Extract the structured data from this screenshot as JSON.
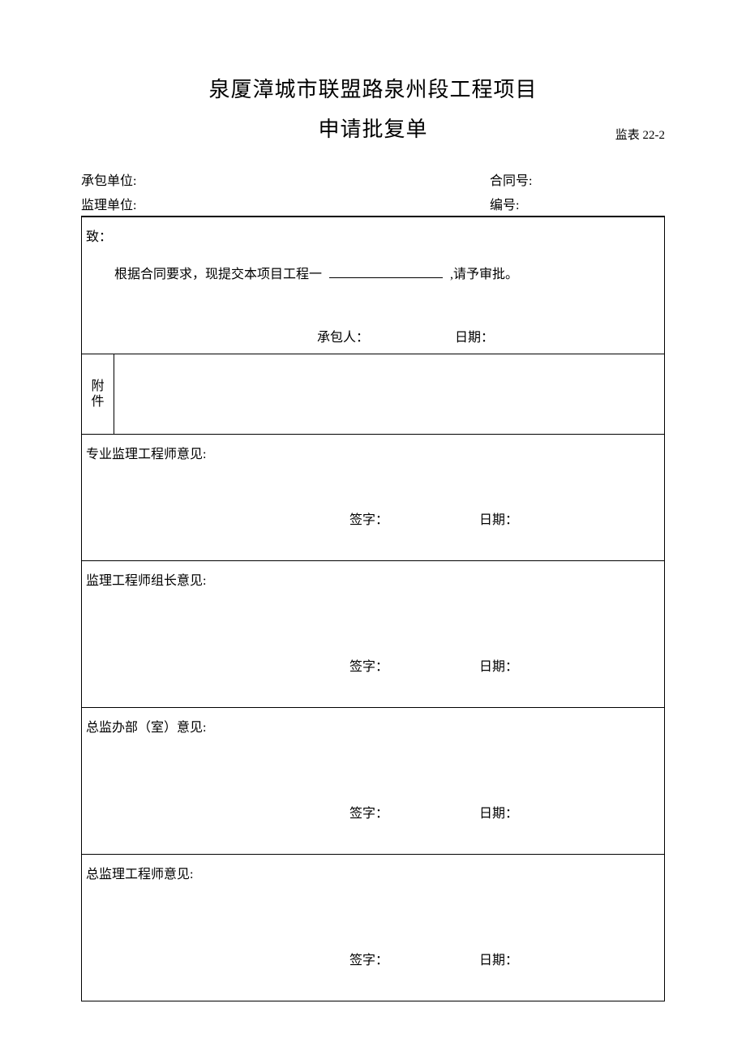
{
  "document": {
    "main_title": "泉厦漳城市联盟路泉州段工程项目",
    "sub_title": "申请批复单",
    "form_code": "监表 22-2"
  },
  "header": {
    "contractor_label": "承包单位:",
    "contract_no_label": "合同号:",
    "supervisor_label": "监理单位:",
    "serial_no_label": "编号:"
  },
  "body": {
    "to_label": "致：",
    "content_prefix": "根据合同要求，现提交本项目工程一",
    "content_suffix": ",请予审批。",
    "contractor_sig_label": "承包人：",
    "date_label": "日期：",
    "attachment_label": "附件"
  },
  "opinions": [
    {
      "title": "专业监理工程师意见:",
      "sig_label": "签字：",
      "date_label": "日期："
    },
    {
      "title": "监理工程师组长意见:",
      "sig_label": "签字：",
      "date_label": "日期："
    },
    {
      "title": "总监办部（室）意见:",
      "sig_label": "签字：",
      "date_label": "日期："
    },
    {
      "title": "总监理工程师意见:",
      "sig_label": "签字：",
      "date_label": "日期："
    }
  ],
  "styling": {
    "background_color": "#ffffff",
    "text_color": "#000000",
    "border_color": "#000000",
    "title_fontsize": 26,
    "body_fontsize": 16,
    "code_fontsize": 15,
    "font_family": "SimSun"
  }
}
